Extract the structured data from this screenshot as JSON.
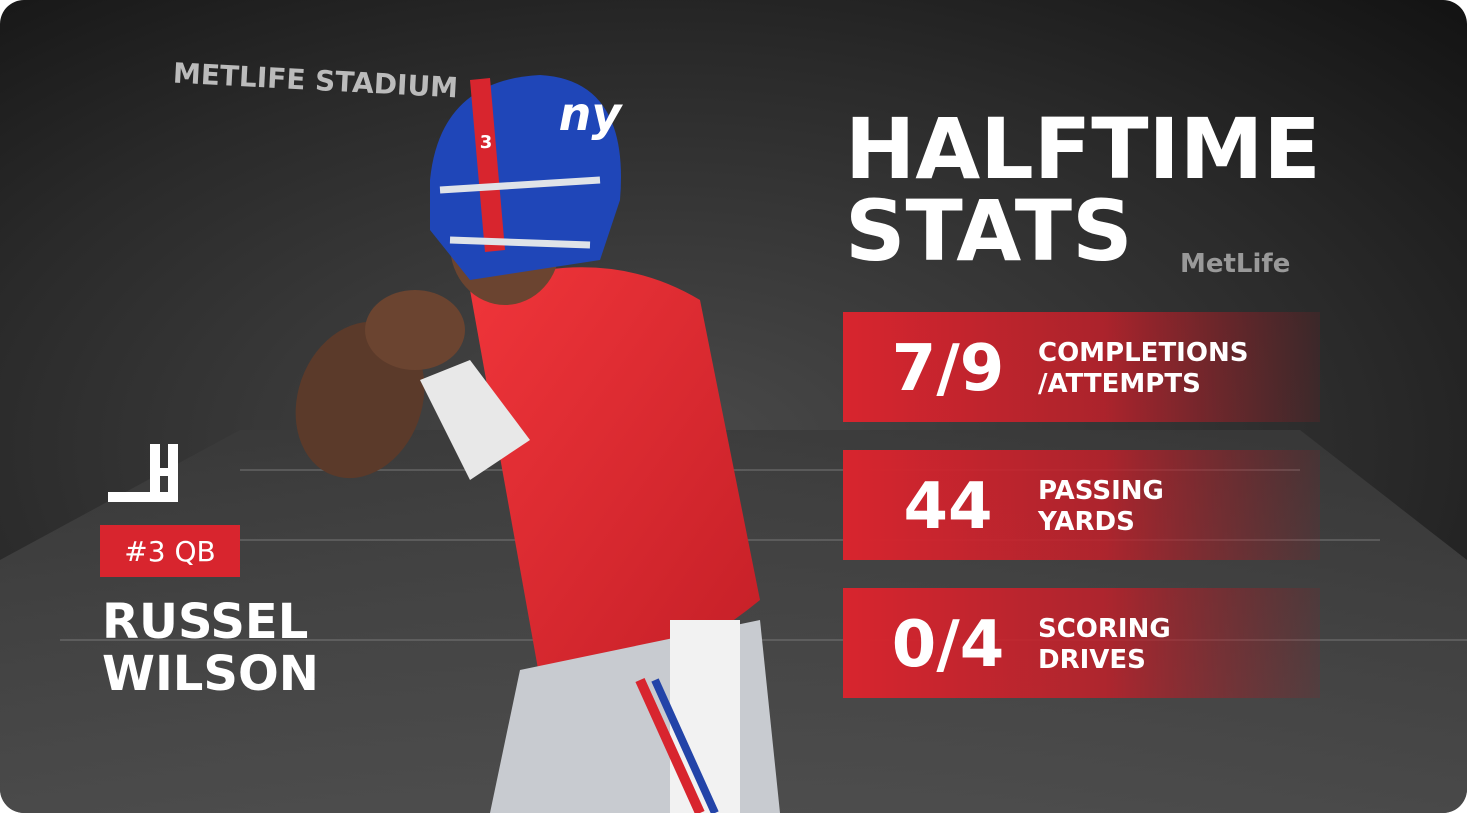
{
  "background": {
    "signage": [
      "METLIFE STADIUM",
      "MetLife"
    ]
  },
  "header": {
    "title_lines": [
      "HALFTIME",
      "STATS"
    ]
  },
  "player": {
    "helmet_logo": "ny",
    "helmet_number": "3",
    "number_position": "#3 QB",
    "name_lines": [
      "RUSSEL",
      "WILSON"
    ]
  },
  "stats": [
    {
      "value": "7/9",
      "label_lines": [
        "COMPLETIONS",
        "/ATTEMPTS"
      ]
    },
    {
      "value": "44",
      "label_lines": [
        "PASSING",
        "YARDS"
      ]
    },
    {
      "value": "0/4",
      "label_lines": [
        "SCORING",
        "DRIVES"
      ]
    }
  ]
}
